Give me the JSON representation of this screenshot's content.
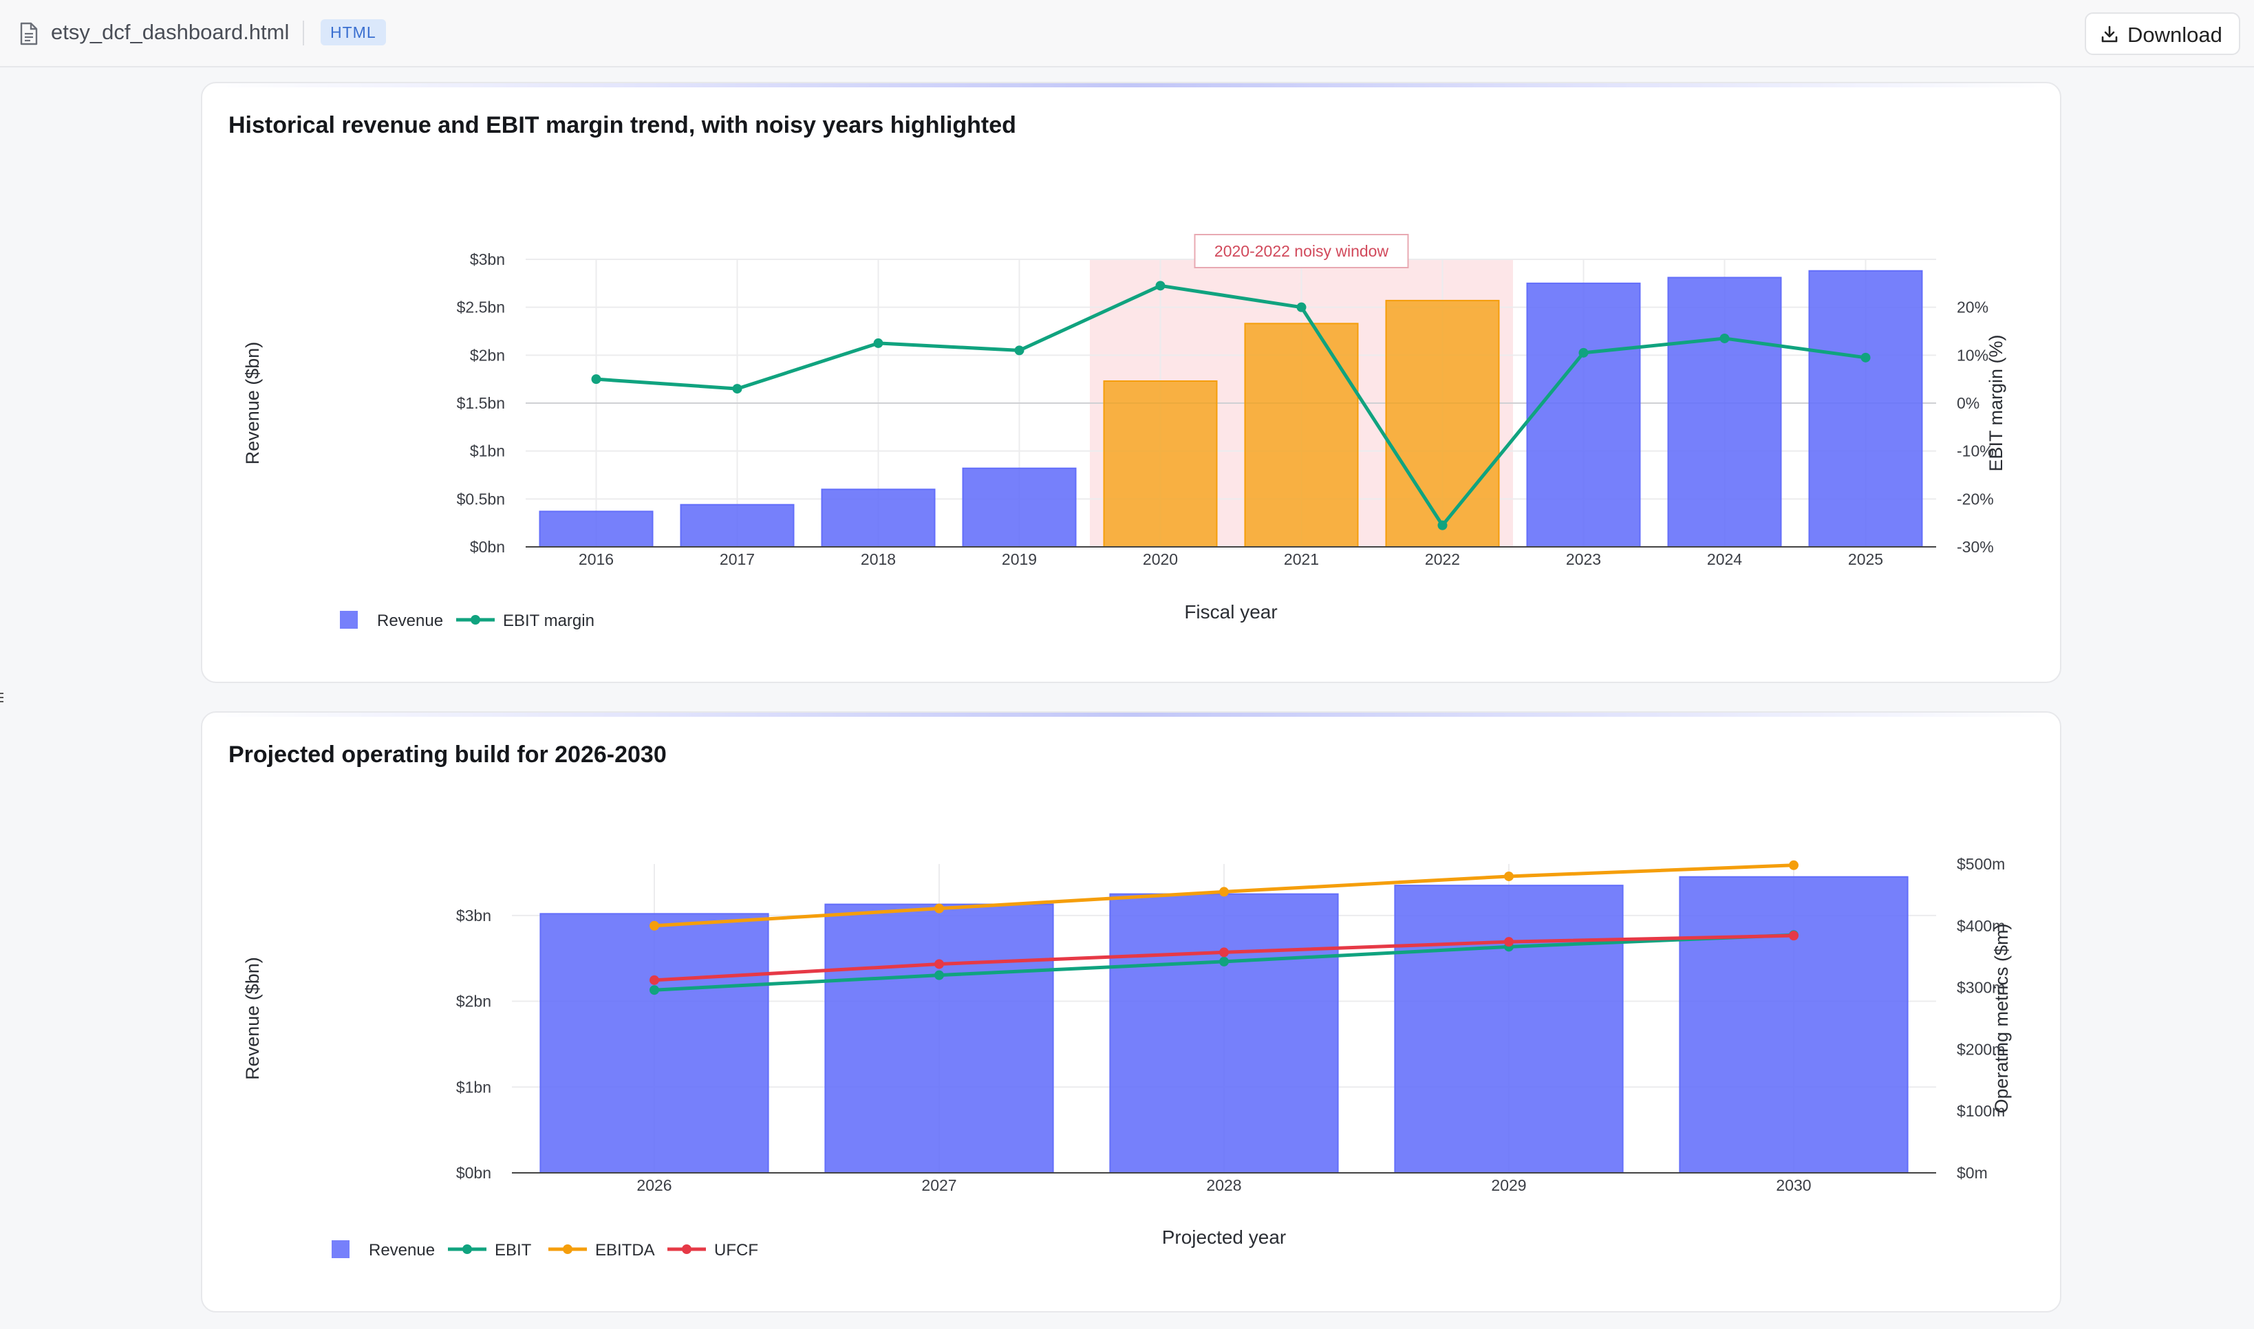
{
  "toolbar": {
    "file_name": "etsy_dcf_dashboard.html",
    "file_type": "HTML",
    "download_label": "Download"
  },
  "icons": {
    "file": "file-icon",
    "download": "download-icon",
    "drag": "drag-handle-icon"
  },
  "colors": {
    "revenue_bar": "#636efa",
    "noisy_bar": "#f59e0b",
    "ebit": "#10a37f",
    "ebitda": "#f59e0b",
    "ufcf": "#e63946",
    "noisy_band": "#fde2e4",
    "noisy_text": "#d1495b"
  },
  "chart_data": [
    {
      "type": "bar",
      "title": "Historical revenue and EBIT margin trend, with noisy years highlighted",
      "xlabel": "Fiscal year",
      "ylabel": "Revenue ($bn)",
      "y2label": "EBIT margin (%)",
      "categories": [
        "2016",
        "2017",
        "2018",
        "2019",
        "2020",
        "2021",
        "2022",
        "2023",
        "2024",
        "2025"
      ],
      "ylim": [
        0,
        3
      ],
      "y_ticks": [
        "$0bn",
        "$0.5bn",
        "$1bn",
        "$1.5bn",
        "$2bn",
        "$2.5bn",
        "$3bn"
      ],
      "y2lim": [
        -30,
        30
      ],
      "y2_ticks": [
        "-30%",
        "-20%",
        "-10%",
        "0%",
        "10%",
        "20%"
      ],
      "highlight": {
        "label": "2020-2022 noisy window",
        "from": "2020",
        "to": "2022"
      },
      "series": [
        {
          "name": "Revenue",
          "kind": "bar",
          "axis": "left",
          "values": [
            0.37,
            0.44,
            0.6,
            0.82,
            1.73,
            2.33,
            2.57,
            2.75,
            2.81,
            2.88
          ],
          "highlighted": [
            false,
            false,
            false,
            false,
            true,
            true,
            true,
            false,
            false,
            false
          ]
        },
        {
          "name": "EBIT margin",
          "kind": "line",
          "axis": "right",
          "values": [
            5,
            3,
            12.5,
            11,
            24.5,
            20,
            -25.5,
            10.5,
            13.5,
            9.5
          ]
        }
      ],
      "legend": "bottom-left",
      "grid": true
    },
    {
      "type": "bar",
      "title": "Projected operating build for 2026-2030",
      "xlabel": "Projected year",
      "ylabel": "Revenue ($bn)",
      "y2label": "Operating metrics ($m)",
      "categories": [
        "2026",
        "2027",
        "2028",
        "2029",
        "2030"
      ],
      "ylim": [
        0,
        3.6
      ],
      "y_ticks": [
        "$0bn",
        "$1bn",
        "$2bn",
        "$3bn"
      ],
      "y2lim": [
        0,
        500
      ],
      "y2_ticks": [
        "$0m",
        "$100m",
        "$200m",
        "$300m",
        "$400m",
        "$500m"
      ],
      "series": [
        {
          "name": "Revenue",
          "kind": "bar",
          "axis": "left",
          "values": [
            3.02,
            3.13,
            3.25,
            3.35,
            3.45
          ]
        },
        {
          "name": "EBIT",
          "kind": "line",
          "axis": "right",
          "values": [
            296,
            320,
            342,
            366,
            385
          ]
        },
        {
          "name": "EBITDA",
          "kind": "line",
          "axis": "right",
          "values": [
            400,
            428,
            455,
            480,
            498
          ]
        },
        {
          "name": "UFCF",
          "kind": "line",
          "axis": "right",
          "values": [
            312,
            338,
            357,
            374,
            384
          ]
        }
      ],
      "legend": "bottom-left",
      "grid": true
    }
  ]
}
